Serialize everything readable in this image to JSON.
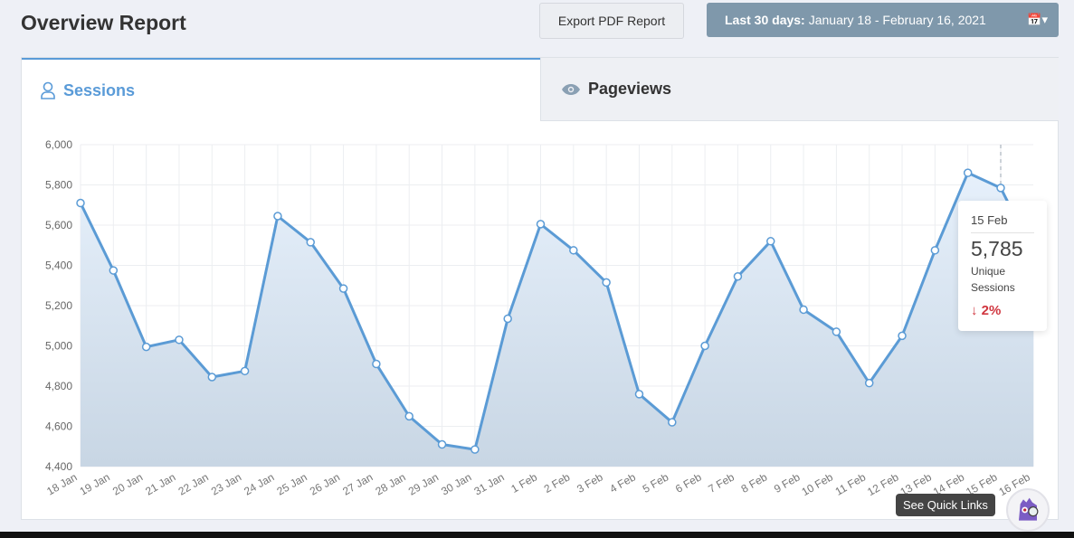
{
  "header": {
    "title": "Overview Report",
    "export_label": "Export PDF Report",
    "date_prefix": "Last 30 days:",
    "date_range": "January 18 - February 16, 2021"
  },
  "tabs": [
    {
      "label": "Sessions",
      "icon": "user-icon",
      "active": true
    },
    {
      "label": "Pageviews",
      "icon": "eye-icon",
      "active": false
    }
  ],
  "tooltip": {
    "date": "15 Feb",
    "value": "5,785",
    "label": "Unique Sessions",
    "change": "2%",
    "direction": "down"
  },
  "quick_links": {
    "label": "See Quick Links"
  },
  "colors": {
    "accent": "#5a9bd8",
    "negative": "#d0363f",
    "date_button": "#7f98ab"
  },
  "chart_data": {
    "type": "area",
    "ylim": [
      4400,
      6000
    ],
    "yticks": [
      "4,400",
      "4,600",
      "4,800",
      "5,000",
      "5,200",
      "5,400",
      "5,600",
      "5,800",
      "6,000"
    ],
    "categories": [
      "18 Jan",
      "19 Jan",
      "20 Jan",
      "21 Jan",
      "22 Jan",
      "23 Jan",
      "24 Jan",
      "25 Jan",
      "26 Jan",
      "27 Jan",
      "28 Jan",
      "29 Jan",
      "30 Jan",
      "31 Jan",
      "1 Feb",
      "2 Feb",
      "3 Feb",
      "4 Feb",
      "5 Feb",
      "6 Feb",
      "7 Feb",
      "8 Feb",
      "9 Feb",
      "10 Feb",
      "11 Feb",
      "12 Feb",
      "13 Feb",
      "14 Feb",
      "15 Feb",
      "16 Feb"
    ],
    "values": [
      5710,
      5375,
      4995,
      5030,
      4845,
      4875,
      5645,
      5515,
      5285,
      4910,
      4650,
      4510,
      4485,
      5135,
      5605,
      5475,
      5315,
      4760,
      4620,
      5000,
      5345,
      5520,
      5180,
      5070,
      4815,
      5050,
      5475,
      5860,
      5785,
      5460
    ],
    "grid": true
  }
}
